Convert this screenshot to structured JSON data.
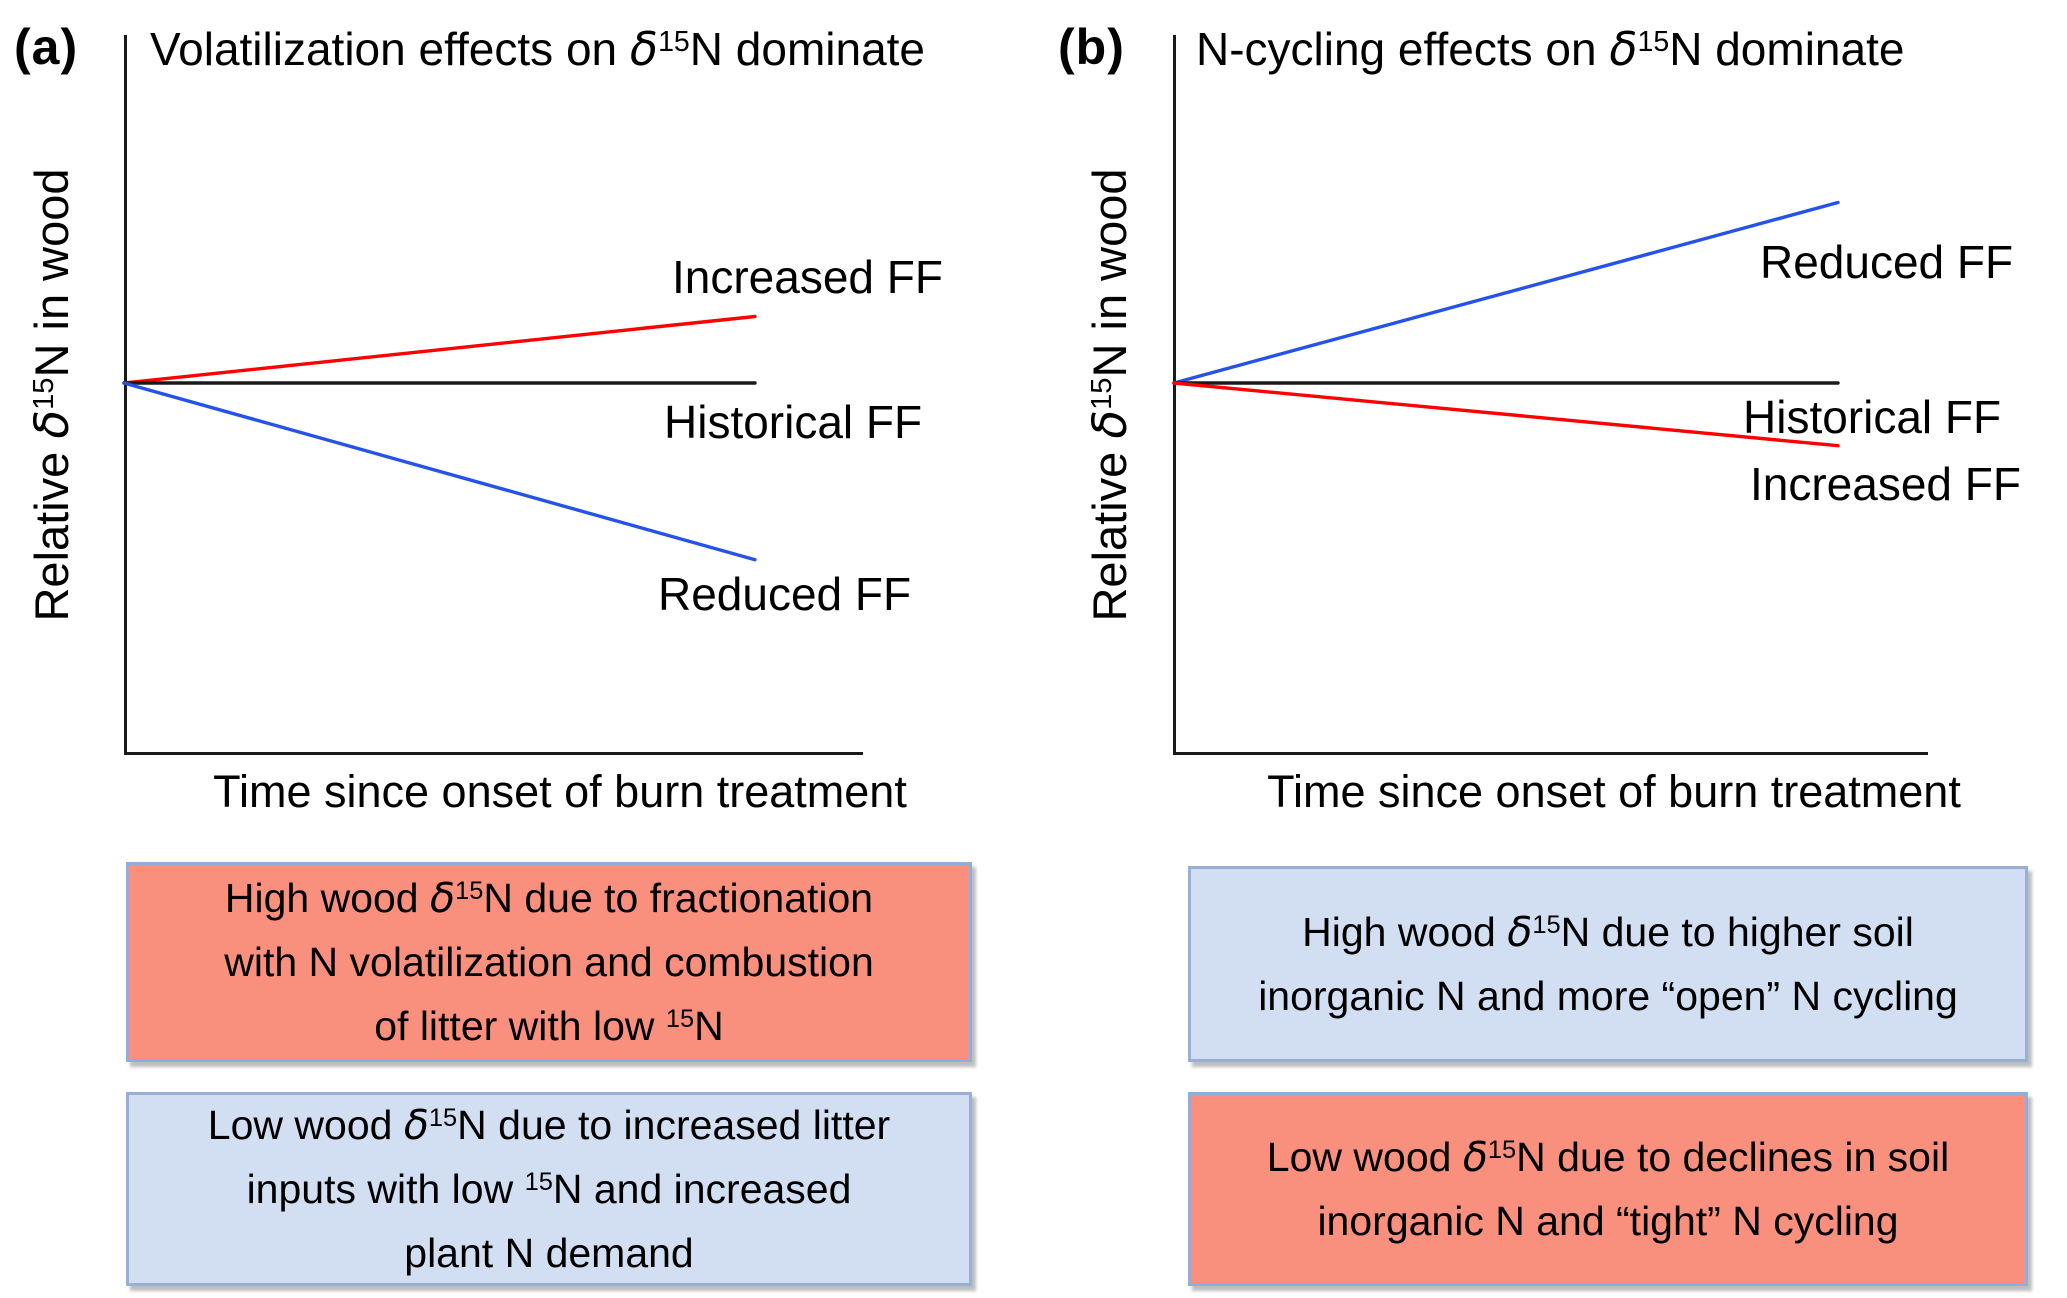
{
  "figure": {
    "panels": [
      {
        "tag": "(a)",
        "title_segments": [
          {
            "t": "Volatilization effects on "
          },
          {
            "t": "δ",
            "italic": true
          },
          {
            "t": "15",
            "sup": true
          },
          {
            "t": "N dominate"
          }
        ],
        "y_axis_label_segments": [
          {
            "t": "Relative "
          },
          {
            "t": "δ",
            "italic": true
          },
          {
            "t": "15",
            "sup": true
          },
          {
            "t": "N in wood"
          }
        ],
        "x_axis_label": "Time since onset of burn treatment",
        "boxes": [
          {
            "fill": "#f9907d",
            "border": "#8faedc",
            "lines": [
              [
                {
                  "t": "High wood "
                },
                {
                  "t": "δ",
                  "italic": true
                },
                {
                  "t": "15",
                  "sup": true
                },
                {
                  "t": "N due to fractionation"
                }
              ],
              [
                {
                  "t": "with N volatilization and combustion"
                }
              ],
              [
                {
                  "t": "of litter with low "
                },
                {
                  "t": "15",
                  "sup": true
                },
                {
                  "t": "N"
                }
              ]
            ]
          },
          {
            "fill": "#d2def2",
            "border": "#9aafd6",
            "lines": [
              [
                {
                  "t": "Low wood "
                },
                {
                  "t": "δ",
                  "italic": true
                },
                {
                  "t": "15",
                  "sup": true
                },
                {
                  "t": "N due to increased litter"
                }
              ],
              [
                {
                  "t": "inputs with low "
                },
                {
                  "t": "15",
                  "sup": true
                },
                {
                  "t": "N and increased"
                }
              ],
              [
                {
                  "t": "plant N demand"
                }
              ]
            ]
          }
        ]
      },
      {
        "tag": "(b)",
        "title_segments": [
          {
            "t": "N-cycling effects on "
          },
          {
            "t": "δ",
            "italic": true
          },
          {
            "t": "15",
            "sup": true
          },
          {
            "t": "N dominate"
          }
        ],
        "y_axis_label_segments": [
          {
            "t": "Relative "
          },
          {
            "t": "δ",
            "italic": true
          },
          {
            "t": "15",
            "sup": true
          },
          {
            "t": "N in wood"
          }
        ],
        "x_axis_label": "Time since onset of burn treatment",
        "boxes": [
          {
            "fill": "#d2def2",
            "border": "#9aafd6",
            "lines": [
              [
                {
                  "t": "High wood "
                },
                {
                  "t": "δ",
                  "italic": true
                },
                {
                  "t": "15",
                  "sup": true
                },
                {
                  "t": "N due to higher soil"
                }
              ],
              [
                {
                  "t": "inorganic N and more “open” N cycling"
                }
              ]
            ]
          },
          {
            "fill": "#f9907d",
            "border": "#8faedc",
            "lines": [
              [
                {
                  "t": "Low wood "
                },
                {
                  "t": "δ",
                  "italic": true
                },
                {
                  "t": "15",
                  "sup": true
                },
                {
                  "t": "N due to declines in soil"
                }
              ],
              [
                {
                  "t": "inorganic N and “tight” N cycling"
                }
              ]
            ]
          }
        ]
      }
    ]
  },
  "chart_data": [
    {
      "type": "line",
      "title": "Volatilization effects on δ15N dominate",
      "xlabel": "Time since onset of burn treatment",
      "ylabel": "Relative δ15N in wood",
      "axes_note": "conceptual axes, no ticks or numeric scale; values in relative units",
      "x": [
        0,
        1
      ],
      "xlim": [
        0,
        1
      ],
      "ylim": [
        -1,
        1
      ],
      "grid": false,
      "legend_position": "labels-at-line-ends",
      "series": [
        {
          "name": "Increased FF",
          "color": "#ff0000",
          "values": [
            0,
            0.35
          ]
        },
        {
          "name": "Historical FF",
          "color": "#1a1a1a",
          "values": [
            0,
            0
          ]
        },
        {
          "name": "Reduced FF",
          "color": "#2553e9",
          "values": [
            0,
            -0.93
          ]
        }
      ]
    },
    {
      "type": "line",
      "title": "N-cycling effects on δ15N dominate",
      "xlabel": "Time since onset of burn treatment",
      "ylabel": "Relative δ15N in wood",
      "axes_note": "conceptual axes, no ticks or numeric scale; values in relative units",
      "x": [
        0,
        1
      ],
      "xlim": [
        0,
        1
      ],
      "ylim": [
        -1,
        1
      ],
      "grid": false,
      "legend_position": "labels-at-line-ends",
      "series": [
        {
          "name": "Reduced FF",
          "color": "#2553e9",
          "values": [
            0,
            0.95
          ]
        },
        {
          "name": "Historical FF",
          "color": "#1a1a1a",
          "values": [
            0,
            0
          ]
        },
        {
          "name": "Increased FF",
          "color": "#ff0000",
          "values": [
            0,
            -0.33
          ]
        }
      ]
    }
  ]
}
